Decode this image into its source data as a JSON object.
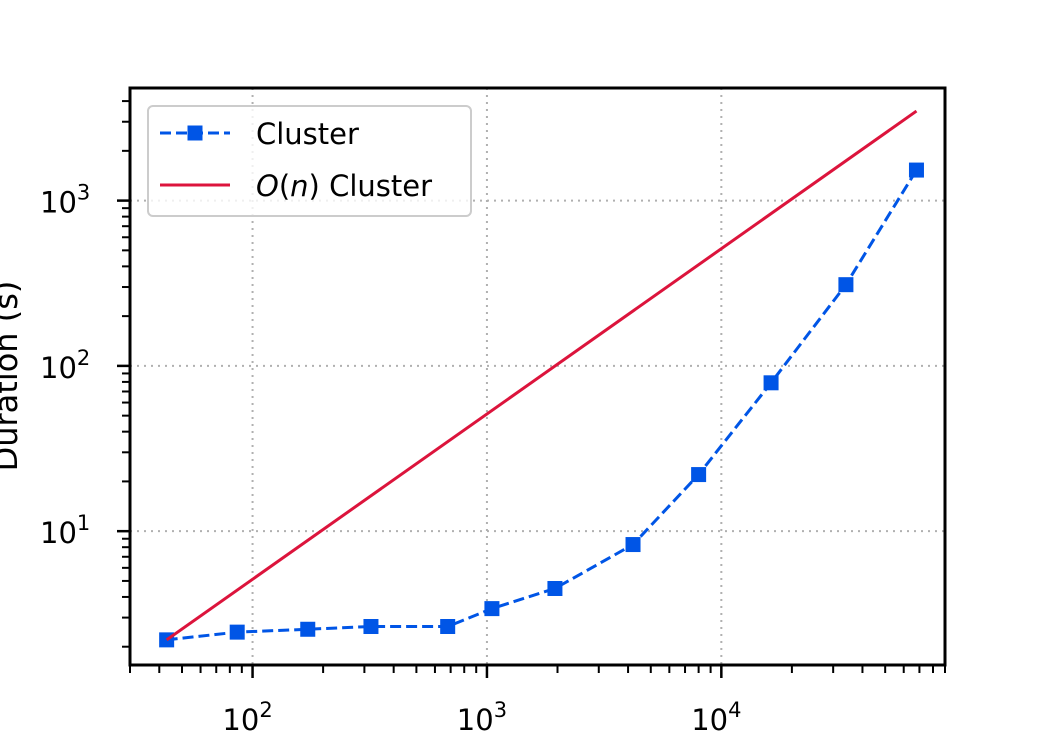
{
  "chart_data": {
    "type": "line",
    "title": "",
    "xlabel": "",
    "ylabel": "Duration (s)",
    "xscale": "log",
    "yscale": "log",
    "xlim": [
      30,
      90000
    ],
    "ylim": [
      1.55,
      4800
    ],
    "x_ticks": [
      100,
      1000,
      10000
    ],
    "x_tick_labels": [
      {
        "base": "10",
        "exp": "2"
      },
      {
        "base": "10",
        "exp": "3"
      },
      {
        "base": "10",
        "exp": "4"
      }
    ],
    "y_ticks": [
      10,
      100,
      1000
    ],
    "y_tick_labels": [
      {
        "base": "10",
        "exp": "1"
      },
      {
        "base": "10",
        "exp": "2"
      },
      {
        "base": "10",
        "exp": "3"
      }
    ],
    "grid": true,
    "legend_position": "upper-left",
    "series": [
      {
        "name": "Cluster",
        "color": "#0055e6",
        "line_style": "dashed",
        "marker": "square",
        "x": [
          43,
          86,
          172,
          320,
          680,
          1050,
          1950,
          4200,
          8000,
          16300,
          34000,
          68000
        ],
        "y": [
          2.2,
          2.45,
          2.55,
          2.65,
          2.65,
          3.4,
          4.5,
          8.3,
          22,
          79,
          310,
          1530
        ]
      },
      {
        "name": "O(n) Cluster",
        "name_parts": {
          "italic": "O",
          "open": "(",
          "italic_arg": "n",
          "rest": ") Cluster"
        },
        "color": "#dc143c",
        "line_style": "solid",
        "marker": "none",
        "x": [
          43,
          68000
        ],
        "y": [
          2.2,
          3480
        ]
      }
    ]
  }
}
